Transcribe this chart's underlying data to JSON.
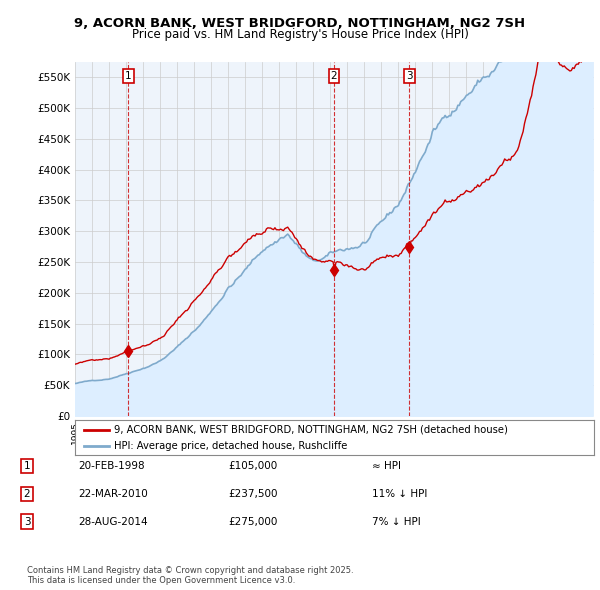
{
  "title": "9, ACORN BANK, WEST BRIDGFORD, NOTTINGHAM, NG2 7SH",
  "subtitle": "Price paid vs. HM Land Registry's House Price Index (HPI)",
  "sale_years_float": [
    1998.13,
    2010.22,
    2014.65
  ],
  "sale_prices": [
    105000,
    237500,
    275000
  ],
  "sale_labels": [
    "1",
    "2",
    "3"
  ],
  "legend_property": "9, ACORN BANK, WEST BRIDGFORD, NOTTINGHAM, NG2 7SH (detached house)",
  "legend_hpi": "HPI: Average price, detached house, Rushcliffe",
  "table_rows": [
    [
      "1",
      "20-FEB-1998",
      "£105,000",
      "≈ HPI"
    ],
    [
      "2",
      "22-MAR-2010",
      "£237,500",
      "11% ↓ HPI"
    ],
    [
      "3",
      "28-AUG-2014",
      "£275,000",
      "7% ↓ HPI"
    ]
  ],
  "footer": "Contains HM Land Registry data © Crown copyright and database right 2025.\nThis data is licensed under the Open Government Licence v3.0.",
  "ylim": [
    0,
    575000
  ],
  "yticks": [
    0,
    50000,
    100000,
    150000,
    200000,
    250000,
    300000,
    350000,
    400000,
    450000,
    500000,
    550000
  ],
  "line_color_property": "#cc0000",
  "line_color_hpi": "#7faacc",
  "fill_color_hpi": "#ddeeff",
  "background_color": "#ffffff",
  "grid_color": "#cccccc"
}
